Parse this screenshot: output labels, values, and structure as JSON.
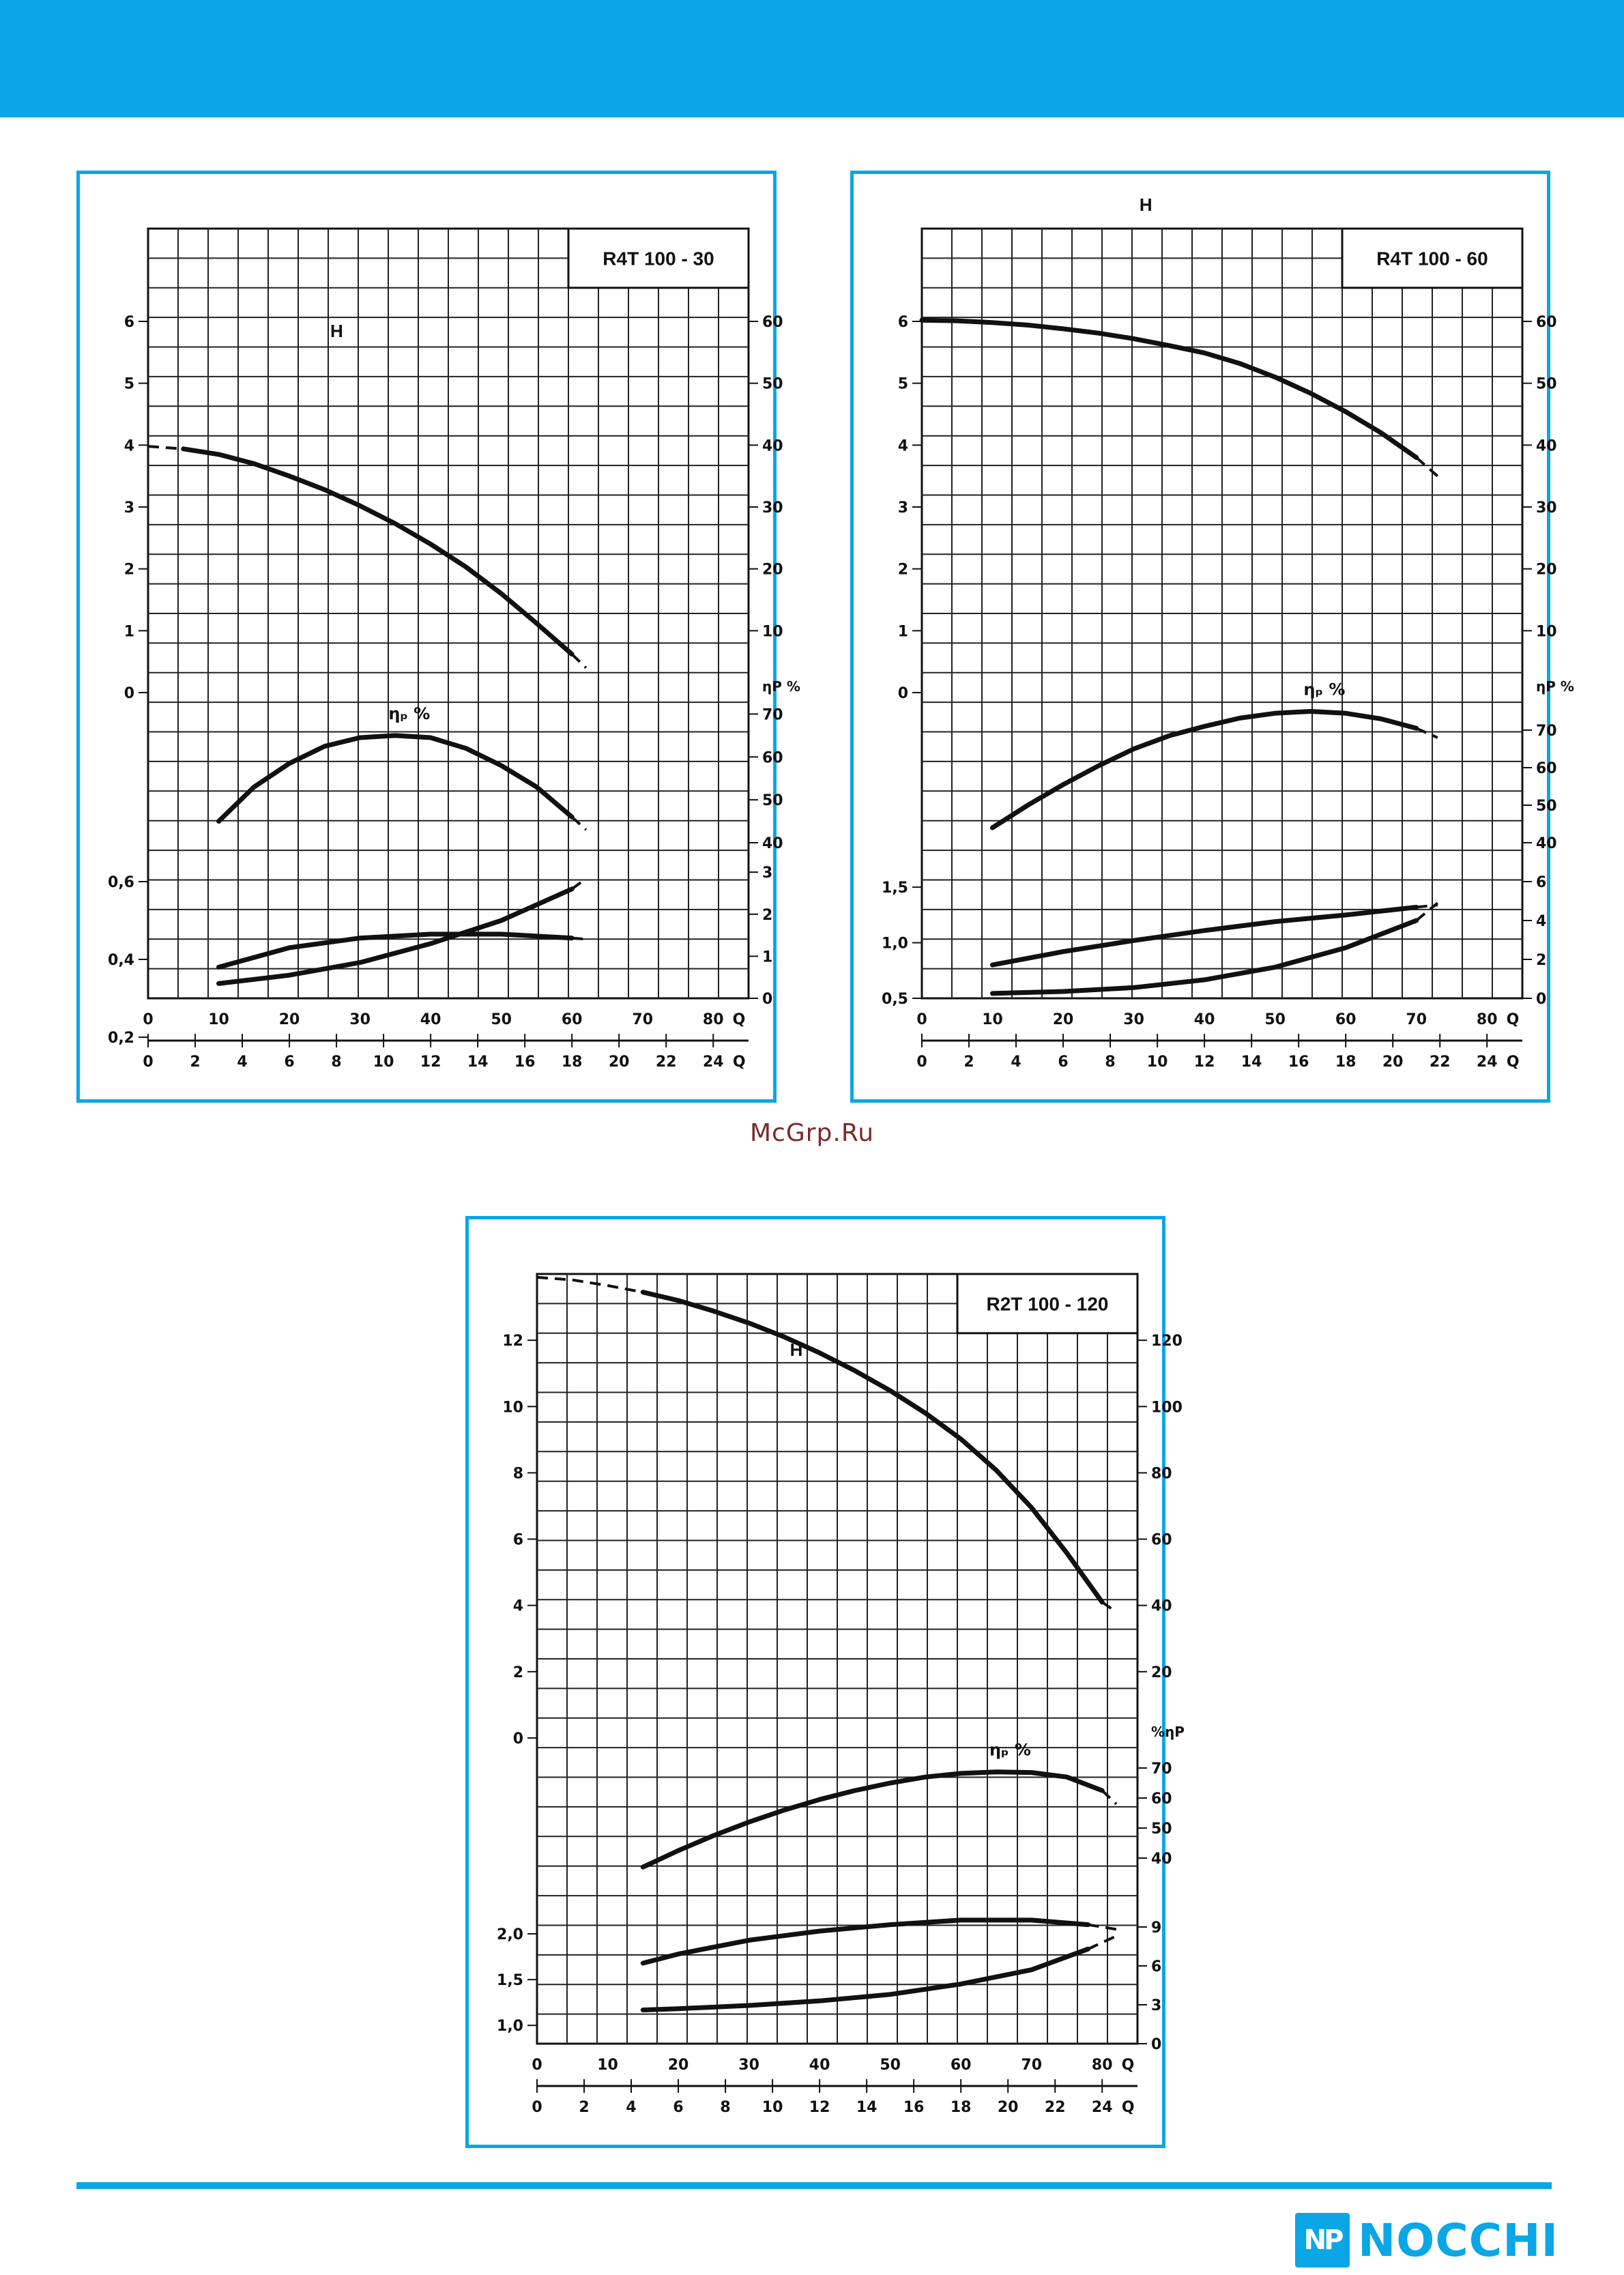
{
  "brand": {
    "name": "NOCCHI",
    "mark": "NP",
    "color": "#0aa6e6"
  },
  "watermark": "McGrp.Ru",
  "chart_data": [
    {
      "type": "line",
      "title": "R4T 100 - 30",
      "xlabel": "Q",
      "x_primary": {
        "ticks": [
          "0",
          "10",
          "20",
          "30",
          "40",
          "50",
          "60",
          "70",
          "80"
        ],
        "label": "Q"
      },
      "x_secondary": {
        "ticks": [
          "0",
          "2",
          "4",
          "6",
          "8",
          "10",
          "12",
          "14",
          "16",
          "18",
          "20",
          "22",
          "24"
        ],
        "label": "Q"
      },
      "head": {
        "label": "H",
        "left_ticks": [
          "0",
          "1",
          "2",
          "3",
          "4",
          "5",
          "6"
        ],
        "right_ticks": [
          "10",
          "20",
          "30",
          "40",
          "50",
          "60"
        ],
        "ylim": [
          0,
          7.5
        ],
        "x": [
          0,
          5,
          10,
          15,
          20,
          25,
          30,
          35,
          40,
          45,
          50,
          55,
          60,
          62
        ],
        "y": [
          3.98,
          3.94,
          3.85,
          3.7,
          3.5,
          3.28,
          3.02,
          2.73,
          2.4,
          2.03,
          1.6,
          1.12,
          0.62,
          0.4
        ],
        "dashed_until": 1,
        "dashed_from": 12
      },
      "efficiency": {
        "label": "ηₚ %",
        "right_label": "ηP %",
        "right_ticks": [
          "40",
          "50",
          "60",
          "70"
        ],
        "ylim": [
          40,
          75
        ],
        "x": [
          10,
          15,
          20,
          25,
          30,
          35,
          40,
          45,
          50,
          55,
          60,
          62
        ],
        "y": [
          45,
          53,
          58.5,
          62.5,
          64.5,
          65,
          64.5,
          62,
          58,
          53,
          46,
          43
        ],
        "dashed_from": 10
      },
      "power": {
        "left_ticks": [
          "0,2",
          "0,4",
          "0,6"
        ],
        "ylim": [
          0.3,
          0.7
        ],
        "x": [
          10,
          20,
          30,
          40,
          50,
          60,
          62
        ],
        "y": [
          0.38,
          0.43,
          0.455,
          0.465,
          0.465,
          0.455,
          0.452
        ],
        "dashed_from": 5
      },
      "npsh": {
        "right_ticks": [
          "0",
          "1",
          "2",
          "3"
        ],
        "ylim": [
          0,
          3.7
        ],
        "x": [
          10,
          20,
          30,
          40,
          50,
          60,
          62
        ],
        "y": [
          0.35,
          0.55,
          0.85,
          1.3,
          1.85,
          2.6,
          2.85
        ],
        "dashed_from": 5
      }
    },
    {
      "type": "line",
      "title": "R4T 100 - 60",
      "xlabel": "Q",
      "x_primary": {
        "ticks": [
          "0",
          "10",
          "20",
          "30",
          "40",
          "50",
          "60",
          "70",
          "80"
        ],
        "label": "Q"
      },
      "x_secondary": {
        "ticks": [
          "0",
          "2",
          "4",
          "6",
          "8",
          "10",
          "12",
          "14",
          "16",
          "18",
          "20",
          "22",
          "24"
        ],
        "label": "Q"
      },
      "head": {
        "label": "H",
        "left_ticks": [
          "0",
          "1",
          "2",
          "3",
          "4",
          "5",
          "6"
        ],
        "right_ticks": [
          "10",
          "20",
          "30",
          "40",
          "50",
          "60"
        ],
        "ylim": [
          0,
          7.5
        ],
        "x": [
          0,
          5,
          10,
          15,
          20,
          25,
          30,
          35,
          40,
          45,
          50,
          55,
          60,
          65,
          70,
          73
        ],
        "y": [
          6.02,
          6.01,
          5.98,
          5.94,
          5.88,
          5.81,
          5.72,
          5.61,
          5.49,
          5.32,
          5.1,
          4.84,
          4.54,
          4.2,
          3.8,
          3.5
        ],
        "dashed_from": 14
      },
      "efficiency": {
        "label": "ηₚ %",
        "right_label": "ηP %",
        "right_ticks": [
          "40",
          "50",
          "60",
          "70"
        ],
        "ylim": [
          40,
          80
        ],
        "x": [
          10,
          15,
          20,
          25,
          30,
          35,
          40,
          45,
          50,
          55,
          60,
          65,
          70,
          73
        ],
        "y": [
          44,
          50,
          55.5,
          60.5,
          65,
          68.5,
          71,
          73.2,
          74.5,
          75,
          74.5,
          73,
          70.5,
          68
        ],
        "dashed_from": 12
      },
      "power": {
        "left_ticks": [
          "0,5",
          "1,0",
          "1,5"
        ],
        "ylim": [
          0.5,
          1.9
        ],
        "x": [
          10,
          20,
          30,
          40,
          50,
          60,
          70,
          73
        ],
        "y": [
          0.8,
          0.92,
          1.02,
          1.11,
          1.19,
          1.25,
          1.32,
          1.34
        ],
        "dashed_from": 6
      },
      "npsh": {
        "right_ticks": [
          "0",
          "2",
          "4",
          "6"
        ],
        "ylim": [
          0,
          8
        ],
        "x": [
          10,
          20,
          30,
          40,
          50,
          60,
          70,
          73
        ],
        "y": [
          0.25,
          0.35,
          0.55,
          0.95,
          1.6,
          2.6,
          4.0,
          4.9
        ],
        "dashed_from": 6
      }
    },
    {
      "type": "line",
      "title": "R2T 100 - 120",
      "xlabel": "Q",
      "x_primary": {
        "ticks": [
          "0",
          "10",
          "20",
          "30",
          "40",
          "50",
          "60",
          "70",
          "80"
        ],
        "label": "Q"
      },
      "x_secondary": {
        "ticks": [
          "0",
          "2",
          "4",
          "6",
          "8",
          "10",
          "12",
          "14",
          "16",
          "18",
          "20",
          "22",
          "24"
        ],
        "label": "Q"
      },
      "head": {
        "label": "H",
        "left_ticks": [
          "0",
          "2",
          "4",
          "6",
          "8",
          "10",
          "12"
        ],
        "right_ticks": [
          "20",
          "40",
          "60",
          "80",
          "100",
          "120"
        ],
        "ylim": [
          0,
          14
        ],
        "x": [
          0,
          5,
          10,
          15,
          20,
          25,
          30,
          35,
          40,
          45,
          50,
          55,
          60,
          65,
          70,
          75,
          80,
          82
        ],
        "y": [
          13.9,
          13.82,
          13.65,
          13.45,
          13.2,
          12.88,
          12.52,
          12.1,
          11.62,
          11.08,
          10.48,
          9.8,
          9.02,
          8.08,
          6.95,
          5.58,
          4.1,
          3.8
        ],
        "dashed_until": 3,
        "dashed_from": 16
      },
      "efficiency": {
        "label": "ηₚ %",
        "right_label": "%ηP",
        "right_ticks": [
          "40",
          "50",
          "60",
          "70"
        ],
        "ylim": [
          30,
          80
        ],
        "x": [
          15,
          20,
          25,
          30,
          35,
          40,
          45,
          50,
          55,
          60,
          65,
          70,
          75,
          80,
          82
        ],
        "y": [
          37,
          42.5,
          47.5,
          52,
          56,
          59.5,
          62.5,
          65,
          67,
          68.2,
          68.7,
          68.5,
          67,
          62.5,
          58
        ],
        "dashed_from": 13
      },
      "power": {
        "left_ticks": [
          "1,0",
          "1,5",
          "2,0"
        ],
        "ylim": [
          0.8,
          2.5
        ],
        "x": [
          15,
          20,
          30,
          40,
          50,
          60,
          70,
          78,
          82
        ],
        "y": [
          1.68,
          1.78,
          1.93,
          2.03,
          2.1,
          2.15,
          2.15,
          2.1,
          2.05
        ],
        "dashed_from": 7
      },
      "npsh": {
        "right_ticks": [
          "0",
          "3",
          "6",
          "9"
        ],
        "ylim": [
          0,
          12
        ],
        "x": [
          15,
          20,
          30,
          40,
          50,
          60,
          70,
          78,
          82
        ],
        "y": [
          2.6,
          2.7,
          2.95,
          3.3,
          3.8,
          4.6,
          5.7,
          7.3,
          8.3
        ],
        "dashed_from": 7
      }
    }
  ]
}
